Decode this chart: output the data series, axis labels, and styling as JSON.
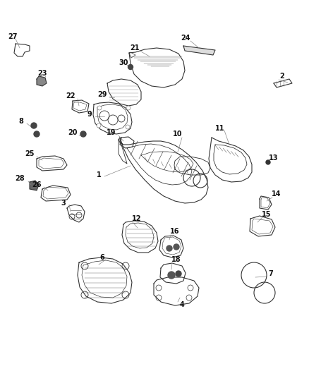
{
  "bg_color": "#ffffff",
  "line_color": "#333333",
  "label_color": "#111111",
  "figsize": [
    4.38,
    5.33
  ],
  "dpi": 100,
  "label_fs": 7.0,
  "lw": 0.8
}
